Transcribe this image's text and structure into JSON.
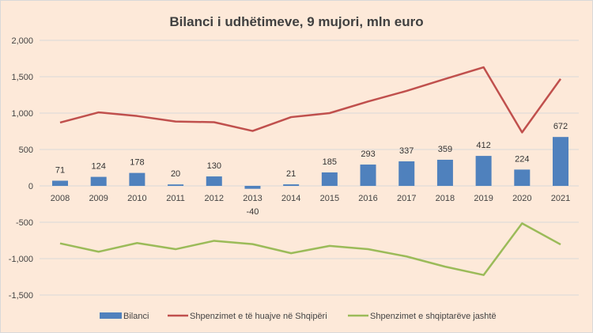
{
  "chart_data": {
    "type": "bar+line",
    "title": "Bilanci i udhëtimeve, 9 mujori, mln euro",
    "categories": [
      "2008",
      "2009",
      "2010",
      "2011",
      "2012",
      "2013",
      "2014",
      "2015",
      "2016",
      "2017",
      "2018",
      "2019",
      "2020",
      "2021"
    ],
    "ylim": [
      -1500,
      2000
    ],
    "yticks": [
      2000,
      1500,
      1000,
      500,
      0,
      -500,
      -1000,
      -1500
    ],
    "ytick_labels": [
      "2,000",
      "1,500",
      "1,000",
      "500",
      "0",
      "-500",
      "-1,000",
      "-1,500"
    ],
    "grid": true,
    "legend_position": "bottom",
    "series": [
      {
        "name": "Bilanci",
        "kind": "bar",
        "color": "#4f81bd",
        "values": [
          71,
          124,
          178,
          20,
          130,
          -40,
          21,
          185,
          293,
          337,
          359,
          412,
          224,
          672
        ],
        "data_labels": true
      },
      {
        "name": "Shpenzimet e të huajve në Shqipëri",
        "kind": "line",
        "color": "#c0504d",
        "values": [
          870,
          1010,
          960,
          885,
          875,
          755,
          945,
          1000,
          1160,
          1305,
          1470,
          1630,
          735,
          1470
        ]
      },
      {
        "name": "Shpenzimet e shqiptarëve jashtë",
        "kind": "line",
        "color": "#9bbb59",
        "values": [
          -790,
          -905,
          -785,
          -870,
          -755,
          -800,
          -925,
          -825,
          -870,
          -970,
          -1110,
          -1225,
          -515,
          -805
        ]
      }
    ]
  }
}
